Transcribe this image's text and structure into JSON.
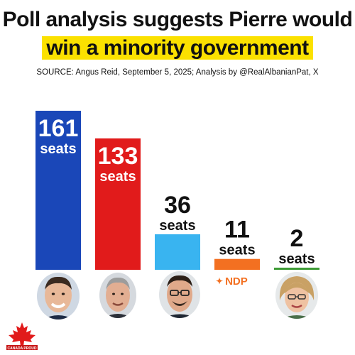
{
  "title_line1": "Poll analysis suggests Pierre would",
  "title_line2": "win a minority government",
  "source": "SOURCE: Angus Reid, September 5, 2025; Analysis by @RealAlbanianPat, X",
  "ndp_label": "NDP",
  "brand_text": "CANADA PROUD",
  "colors": {
    "conservative": "#1a47b8",
    "liberal": "#e11b1b",
    "bloc": "#39b4f0",
    "ndp": "#f37021",
    "green": "#3d9b35",
    "highlight": "#fbe100"
  },
  "chart_data": {
    "type": "bar",
    "unit": "seats",
    "categories": [
      "161",
      "133",
      "36",
      "11",
      "2"
    ],
    "values": [
      161,
      133,
      36,
      11,
      2
    ],
    "colors": [
      "#1a47b8",
      "#e11b1b",
      "#39b4f0",
      "#f37021",
      "#3d9b35"
    ],
    "value_labels": [
      "161",
      "133",
      "36",
      "11",
      "2"
    ],
    "unit_labels": [
      "seats",
      "seats",
      "seats",
      "seats",
      "seats"
    ],
    "title": "Poll analysis suggests Pierre would win a minority government",
    "xlabel": "",
    "ylabel": "",
    "ylim": [
      0,
      161
    ],
    "grid": false
  }
}
